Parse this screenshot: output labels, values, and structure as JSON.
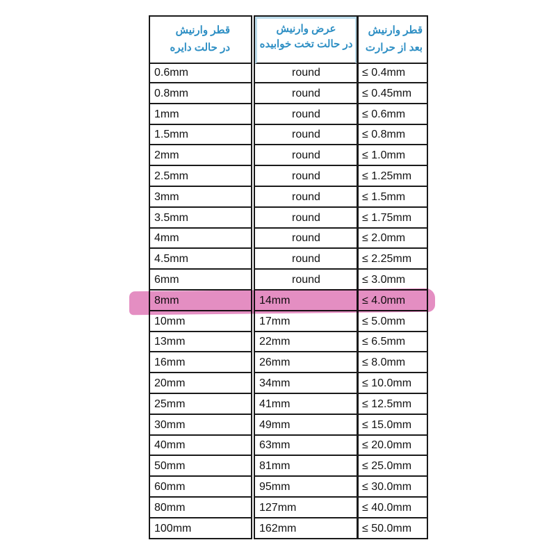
{
  "headers": [
    {
      "line1": "قطر وارنیش",
      "line2": "در حالت دایره"
    },
    {
      "line1": "عرض وارنیش",
      "line2": "در حالت تخت خوابیده"
    },
    {
      "line1": "قطر وارنیش",
      "line2": "بعد از حرارت"
    }
  ],
  "rows": [
    [
      "0.6mm",
      "round",
      "≤ 0.4mm"
    ],
    [
      "0.8mm",
      "round",
      "≤ 0.45mm"
    ],
    [
      "1mm",
      "round",
      "≤ 0.6mm"
    ],
    [
      "1.5mm",
      "round",
      "≤ 0.8mm"
    ],
    [
      "2mm",
      "round",
      "≤ 1.0mm"
    ],
    [
      "2.5mm",
      "round",
      "≤ 1.25mm"
    ],
    [
      "3mm",
      "round",
      "≤ 1.5mm"
    ],
    [
      "3.5mm",
      "round",
      "≤ 1.75mm"
    ],
    [
      "4mm",
      "round",
      "≤ 2.0mm"
    ],
    [
      "4.5mm",
      "round",
      "≤ 2.25mm"
    ],
    [
      "6mm",
      "round",
      "≤ 3.0mm"
    ],
    [
      "8mm",
      "14mm",
      "≤ 4.0mm"
    ],
    [
      "10mm",
      "17mm",
      "≤ 5.0mm"
    ],
    [
      "13mm",
      "22mm",
      "≤ 6.5mm"
    ],
    [
      "16mm",
      "26mm",
      "≤ 8.0mm"
    ],
    [
      "20mm",
      "34mm",
      "≤ 10.0mm"
    ],
    [
      "25mm",
      "41mm",
      "≤ 12.5mm"
    ],
    [
      "30mm",
      "49mm",
      "≤ 15.0mm"
    ],
    [
      "40mm",
      "63mm",
      "≤ 20.0mm"
    ],
    [
      "50mm",
      "81mm",
      "≤ 25.0mm"
    ],
    [
      "60mm",
      "95mm",
      "≤ 30.0mm"
    ],
    [
      "80mm",
      "127mm",
      "≤ 40.0mm"
    ],
    [
      "100mm",
      "162mm",
      "≤ 50.0mm"
    ]
  ],
  "highlighted_row": 11,
  "colors": {
    "header_text": "#2e8fc4",
    "highlight": "#e07ab8"
  }
}
